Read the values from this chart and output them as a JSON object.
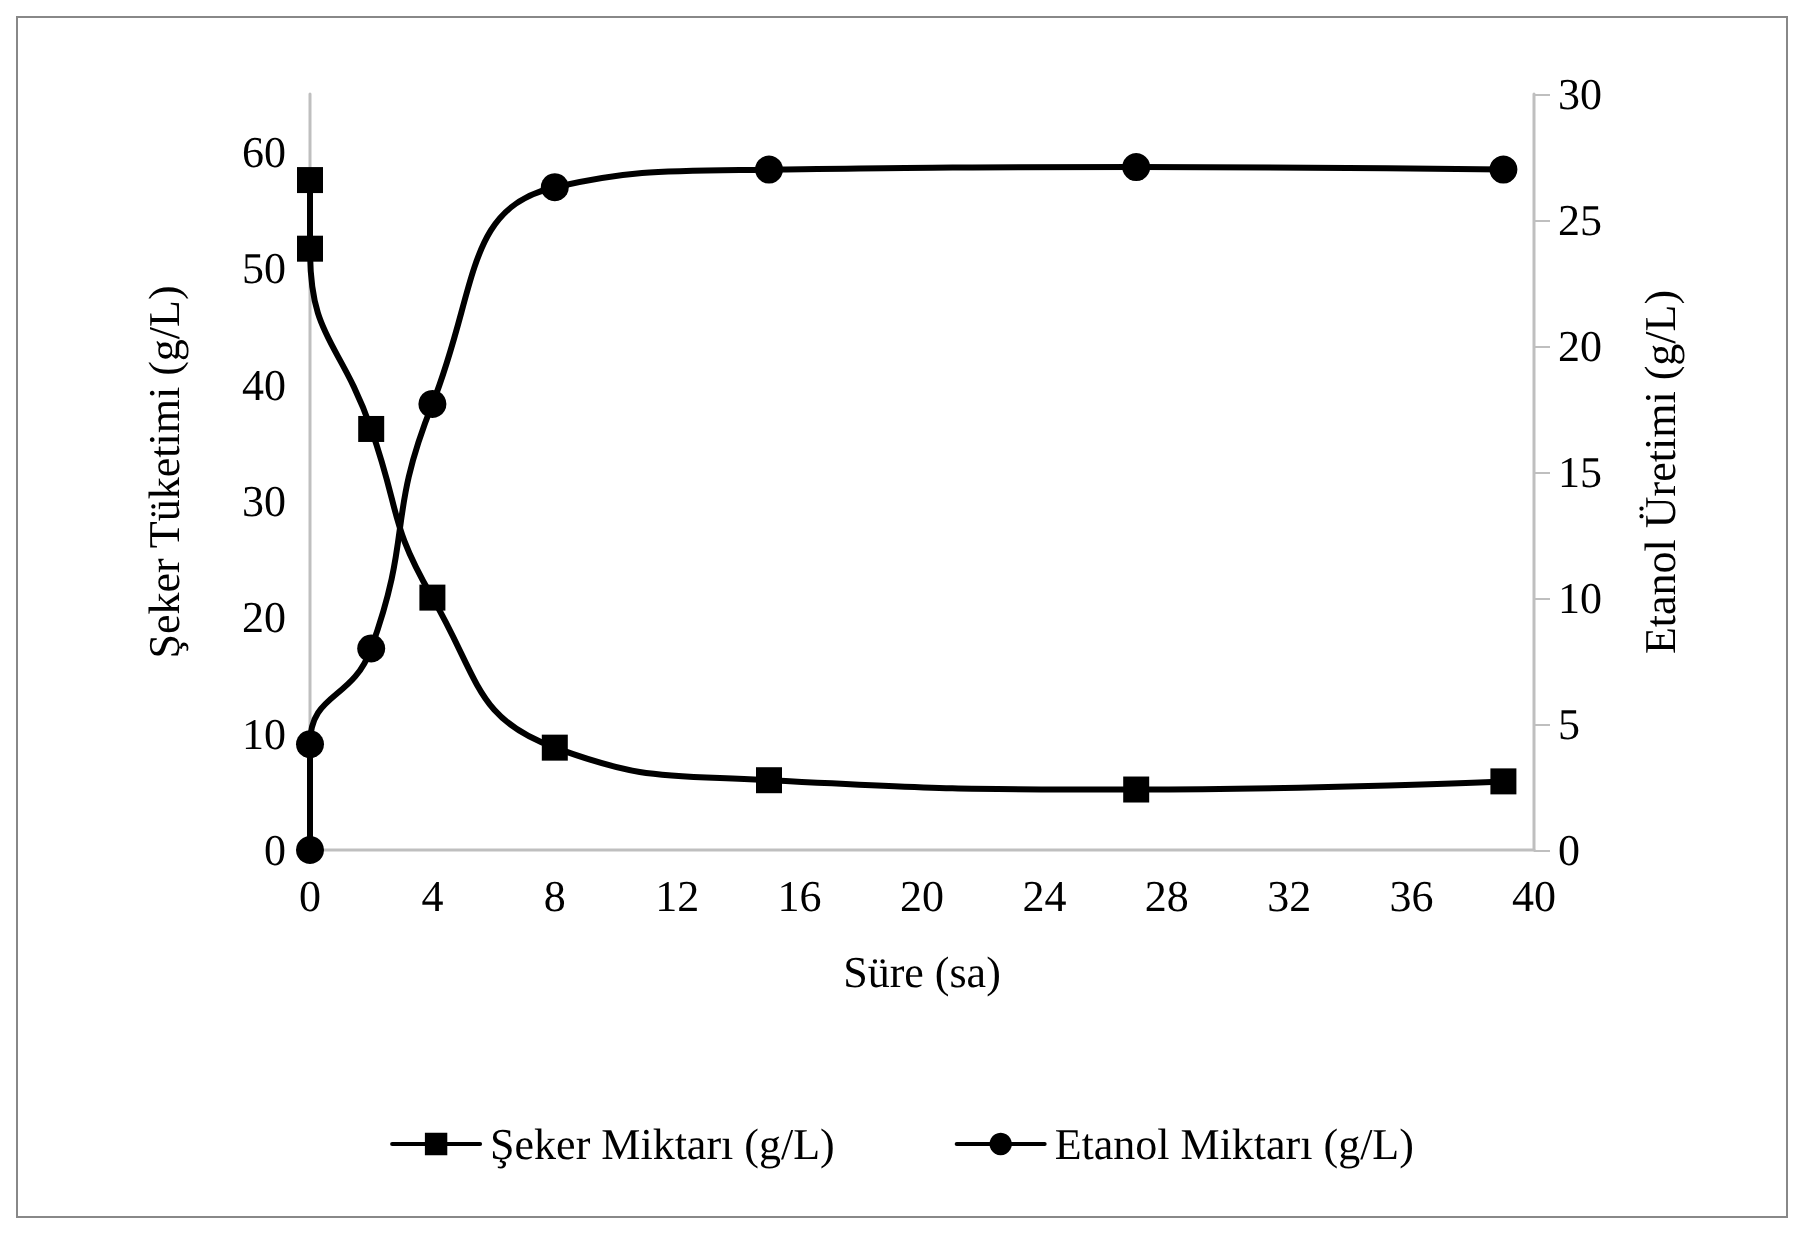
{
  "chart_data": {
    "type": "line",
    "xlabel": "Süre (sa)",
    "ylabel": "Şeker Tüketimi (g/L)",
    "y2label": "Etanol Üretimi (g/L)",
    "xlim": [
      0,
      40
    ],
    "xticks": [
      0,
      4,
      8,
      12,
      16,
      20,
      24,
      28,
      32,
      36,
      40
    ],
    "ylim": [
      0,
      65
    ],
    "yticks": [
      0,
      10,
      20,
      30,
      40,
      50,
      60
    ],
    "y2lim": [
      0,
      30
    ],
    "y2ticks": [
      0,
      5,
      10,
      15,
      20,
      25,
      30
    ],
    "grid": false,
    "legend": "bottom",
    "line_style": "solid",
    "series": [
      {
        "name": "Şeker Miktarı (g/L)",
        "color": "#000000",
        "marker": "square",
        "x": [
          0,
          0,
          2,
          4,
          8,
          15,
          27,
          39
        ],
        "values": [
          57.6,
          51.7,
          36.2,
          21.7,
          8.8,
          6.0,
          5.2,
          5.9
        ]
      },
      {
        "name": "Etanol Miktarı (g/L)",
        "color": "#000000",
        "marker": "circle",
        "axis": "y2",
        "x": [
          0,
          0,
          2,
          4,
          8,
          15,
          27,
          39
        ],
        "values": [
          0,
          4.2,
          8.0,
          17.7,
          26.3,
          27.0,
          27.1,
          27.0
        ]
      }
    ]
  }
}
